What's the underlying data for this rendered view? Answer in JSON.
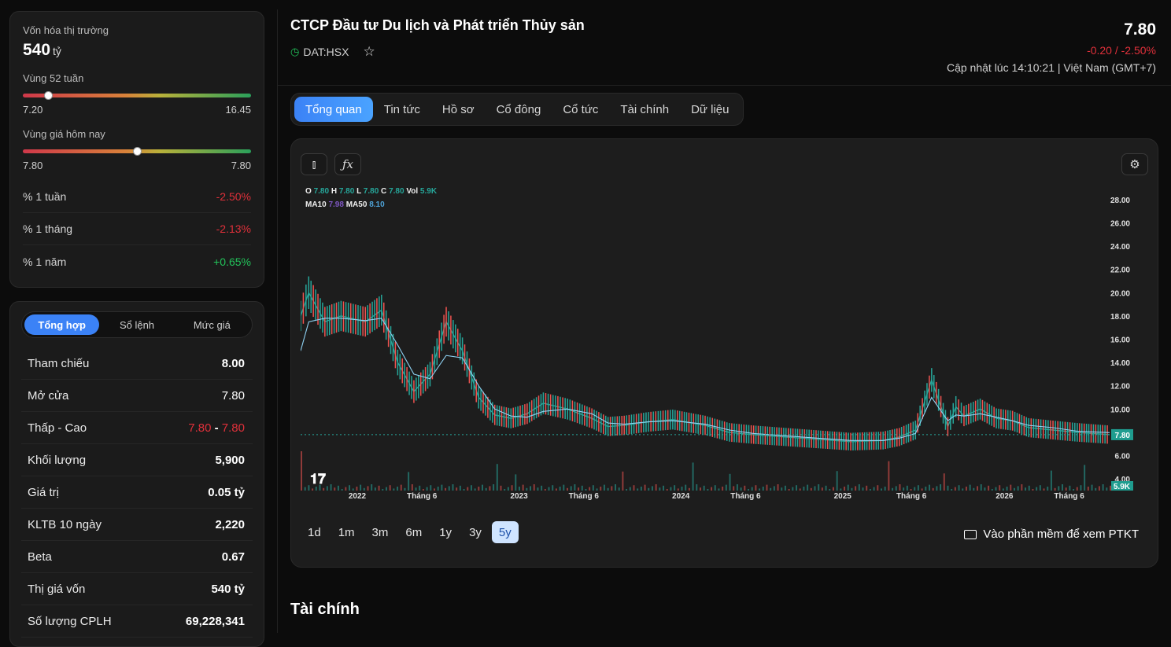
{
  "overview": {
    "market_cap_label": "Vốn hóa thị trường",
    "market_cap_value": "540",
    "market_cap_unit": "tỷ",
    "range52_label": "Vùng 52 tuần",
    "range52_low": "7.20",
    "range52_high": "16.45",
    "range52_position": 0.11,
    "today_label": "Vùng giá hôm nay",
    "today_low": "7.80",
    "today_high": "7.80",
    "today_position": 0.5,
    "perf": [
      {
        "label": "% 1 tuần",
        "value": "-2.50%",
        "tone": "red"
      },
      {
        "label": "% 1 tháng",
        "value": "-2.13%",
        "tone": "red"
      },
      {
        "label": "% 1 năm",
        "value": "+0.65%",
        "tone": "green"
      }
    ]
  },
  "summary": {
    "tabs": [
      "Tổng hợp",
      "Sổ lệnh",
      "Mức giá"
    ],
    "active_tab": 0,
    "ref_label": "Tham chiếu",
    "ref_value": "8.00",
    "open_label": "Mở cửa",
    "open_value": "7.80",
    "lowhigh_label": "Thấp - Cao",
    "low_value": "7.80",
    "lowhigh_sep": "-",
    "high_value": "7.80",
    "vol_label": "Khối lượng",
    "vol_value": "5,900",
    "value_label": "Giá trị",
    "value_value": "0.05 tỷ",
    "avg_label": "KLTB 10 ngày",
    "avg_value": "2,220",
    "beta_label": "Beta",
    "beta_value": "0.67",
    "cap_label": "Thị giá vốn",
    "cap_value": "540 tỷ",
    "shares_label": "Số lượng CPLH",
    "shares_value": "69,228,341"
  },
  "header": {
    "company": "CTCP Đầu tư Du lịch và Phát triển Thủy sản",
    "ticker": "DAT:HSX",
    "price": "7.80",
    "change": "-0.20 / -2.50%",
    "updated": "Cập nhật lúc 14:10:21 | Việt Nam (GMT+7)"
  },
  "tabs": [
    "Tổng quan",
    "Tin tức",
    "Hồ sơ",
    "Cổ đông",
    "Cổ tức",
    "Tài chính",
    "Dữ liệu"
  ],
  "active_tab": 0,
  "chart_legend": {
    "o_label": "O",
    "o": "7.80",
    "h_label": "H",
    "h": "7.80",
    "l_label": "L",
    "l": "7.80",
    "c_label": "C",
    "c": "7.80",
    "vol_label": "Vol",
    "vol": "5.9K",
    "ma10_label": "MA10",
    "ma10": "7.98",
    "ma50_label": "MA50",
    "ma50": "8.10"
  },
  "chart_data": {
    "type": "line",
    "y_ticks": [
      "28.00",
      "26.00",
      "24.00",
      "22.00",
      "20.00",
      "18.00",
      "16.00",
      "14.00",
      "12.00",
      "10.00",
      "8.00",
      "6.00",
      "4.00"
    ],
    "ylim": [
      3,
      29
    ],
    "x_ticks": [
      "2022",
      "Tháng 6",
      "2023",
      "Tháng 6",
      "2024",
      "Tháng 6",
      "2025",
      "Tháng 6",
      "2026",
      "Tháng 6"
    ],
    "last_price_label": "7.80",
    "last_volume_label": "5.9K",
    "last_price": 7.8,
    "price_x": [
      0,
      0.01,
      0.03,
      0.05,
      0.08,
      0.1,
      0.12,
      0.14,
      0.16,
      0.18,
      0.2,
      0.22,
      0.24,
      0.26,
      0.28,
      0.3,
      0.33,
      0.36,
      0.38,
      0.4,
      0.43,
      0.46,
      0.5,
      0.53,
      0.56,
      0.6,
      0.64,
      0.68,
      0.72,
      0.74,
      0.76,
      0.78,
      0.8,
      0.81,
      0.82,
      0.84,
      0.86,
      0.88,
      0.9,
      0.93,
      0.96,
      1.0
    ],
    "price_y": [
      18,
      20,
      17.5,
      18,
      17.5,
      18.5,
      14,
      11.5,
      13,
      17.5,
      15,
      11,
      9.5,
      9.2,
      9.6,
      10.5,
      10,
      9.2,
      8.5,
      8.6,
      8.9,
      9.1,
      8.6,
      8.0,
      7.8,
      7.6,
      7.4,
      7.2,
      7.3,
      7.6,
      8.2,
      12.5,
      8.5,
      10.2,
      9.4,
      10.0,
      9.2,
      9.0,
      8.4,
      8.2,
      8.0,
      7.8
    ],
    "ma_y": [
      15,
      17.5,
      17.8,
      17.8,
      17.6,
      17.8,
      15.5,
      13.0,
      12.6,
      14.6,
      14.4,
      12.0,
      10.0,
      9.4,
      9.3,
      9.8,
      10.0,
      9.6,
      8.8,
      8.7,
      8.9,
      9.0,
      8.7,
      8.2,
      7.9,
      7.7,
      7.5,
      7.3,
      7.3,
      7.5,
      7.9,
      11.0,
      9.0,
      9.5,
      9.4,
      9.6,
      9.3,
      9.0,
      8.6,
      8.4,
      8.1,
      7.98
    ]
  },
  "range_buttons": [
    "1d",
    "1m",
    "3m",
    "6m",
    "1y",
    "3y",
    "5y"
  ],
  "active_range": 6,
  "ptkt_label": "Vào phần mềm để xem PTKT",
  "section_title": "Tài chính"
}
